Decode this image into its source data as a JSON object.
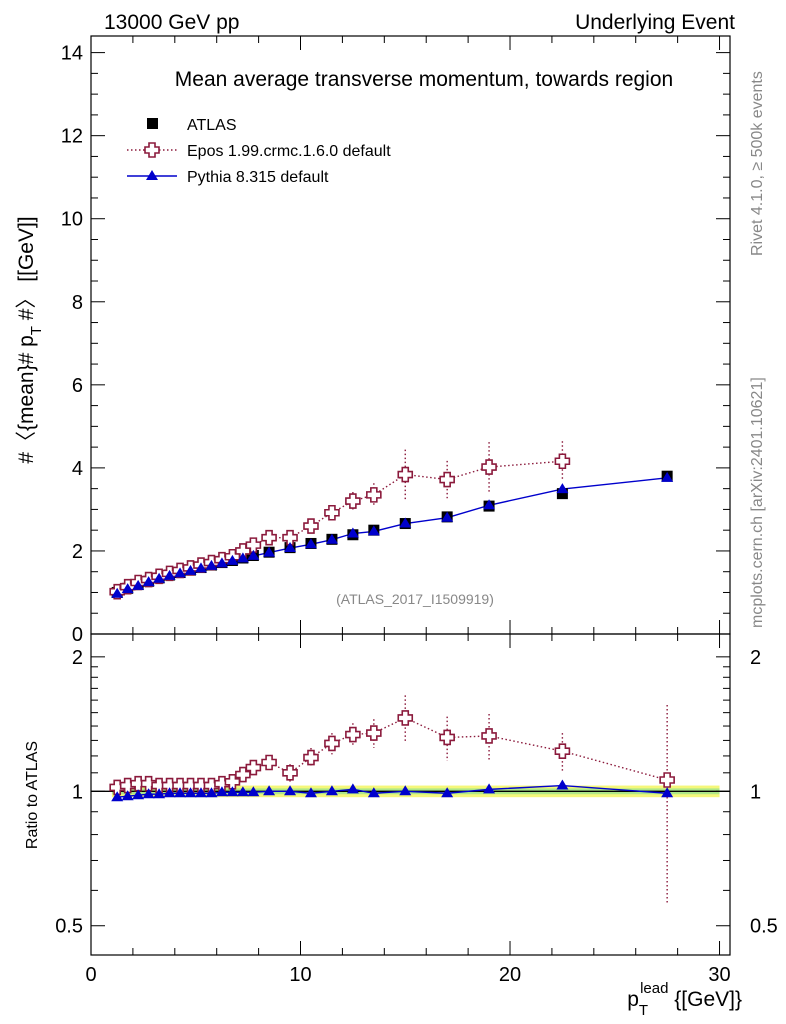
{
  "header": {
    "energy_label": "13000 GeV pp",
    "process_label": "Underlying Event"
  },
  "side_labels": {
    "rivet": "Rivet 4.1.0, ≥ 500k events",
    "mcplots": "mcplots.cern.ch [arXiv:2401.10621]"
  },
  "colors": {
    "data": "#000000",
    "epos": "#8b1a3c",
    "pythia": "#0000cc",
    "band_outer": "#f5f77a",
    "band_inner": "#8ee08e"
  },
  "chart_data": [
    {
      "type": "scatter",
      "title": "Mean average transverse momentum, towards region",
      "watermark": "(ATLAS_2017_I1509919)",
      "xlabel": "p_T^lead [[GeV]]",
      "xlabel_main": "p",
      "xlabel_sub": "T",
      "xlabel_sup": "lead",
      "xlabel_unit": " {[GeV]}",
      "ylabel": "#〈{mean}# p_T #〉 [[GeV]]",
      "ylabel_a": "#〈{mean}# p",
      "ylabel_sub": "T",
      "ylabel_b": " #〉 [[GeV]]",
      "xlim": [
        0,
        30.5
      ],
      "ylim": [
        0,
        14.4
      ],
      "x_ticks": [
        0,
        10,
        20,
        30
      ],
      "y_ticks": [
        0,
        2,
        4,
        6,
        8,
        10,
        12,
        14
      ],
      "x_tick_labels": [
        "0",
        "10",
        "20",
        "30"
      ],
      "y_tick_labels": [
        "0",
        "2",
        "4",
        "6",
        "8",
        "10",
        "12",
        "14"
      ],
      "legend_position": "top-left",
      "series": [
        {
          "name": "ATLAS",
          "marker": "square",
          "x": [
            1.25,
            1.75,
            2.25,
            2.75,
            3.25,
            3.75,
            4.25,
            4.75,
            5.25,
            5.75,
            6.25,
            6.75,
            7.25,
            7.75,
            8.5,
            9.5,
            10.5,
            11.5,
            12.5,
            13.5,
            15,
            17,
            19,
            22.5,
            27.5
          ],
          "y": [
            1.0,
            1.1,
            1.19,
            1.27,
            1.35,
            1.42,
            1.48,
            1.54,
            1.6,
            1.66,
            1.72,
            1.77,
            1.83,
            1.89,
            1.97,
            2.08,
            2.18,
            2.28,
            2.39,
            2.5,
            2.66,
            2.82,
            3.08,
            3.38,
            3.8
          ]
        },
        {
          "name": "Epos 1.99.crmc.1.6.0 default",
          "marker": "open-cross",
          "line": "dotted",
          "x": [
            1.25,
            1.75,
            2.25,
            2.75,
            3.25,
            3.75,
            4.25,
            4.75,
            5.25,
            5.75,
            6.25,
            6.75,
            7.25,
            7.75,
            8.5,
            9.5,
            10.5,
            11.5,
            12.5,
            13.5,
            15,
            17,
            19,
            22.5
          ],
          "y": [
            1.02,
            1.14,
            1.24,
            1.31,
            1.39,
            1.46,
            1.53,
            1.59,
            1.66,
            1.72,
            1.79,
            1.86,
            2.0,
            2.14,
            2.32,
            2.32,
            2.6,
            2.92,
            3.2,
            3.35,
            3.84,
            3.72,
            4.02,
            4.16
          ],
          "yerr": [
            0.02,
            0.02,
            0.02,
            0.02,
            0.02,
            0.02,
            0.02,
            0.02,
            0.03,
            0.03,
            0.04,
            0.05,
            0.06,
            0.08,
            0.1,
            0.12,
            0.15,
            0.18,
            0.22,
            0.28,
            0.6,
            0.45,
            0.6,
            0.48
          ]
        },
        {
          "name": "Pythia 8.315 default",
          "marker": "filled-triangle",
          "line": "solid",
          "x": [
            1.25,
            1.75,
            2.25,
            2.75,
            3.25,
            3.75,
            4.25,
            4.75,
            5.25,
            5.75,
            6.25,
            6.75,
            7.25,
            7.75,
            8.5,
            9.5,
            10.5,
            11.5,
            12.5,
            13.5,
            15,
            17,
            19,
            22.5,
            27.5
          ],
          "y": [
            0.97,
            1.08,
            1.16,
            1.25,
            1.33,
            1.4,
            1.46,
            1.52,
            1.58,
            1.64,
            1.7,
            1.76,
            1.82,
            1.88,
            1.96,
            2.07,
            2.16,
            2.27,
            2.42,
            2.47,
            2.66,
            2.8,
            3.1,
            3.49,
            3.76
          ]
        }
      ]
    },
    {
      "type": "scatter",
      "title": "",
      "ylabel": "Ratio to ATLAS",
      "xlim": [
        0,
        30.5
      ],
      "ylim": [
        0.43,
        2.25
      ],
      "y_scale": "log",
      "y_ticks": [
        0.5,
        1,
        2
      ],
      "y_tick_labels": [
        "0.5",
        "1",
        "2"
      ],
      "x_tick_labels": [
        "0",
        "10",
        "20",
        "30"
      ],
      "reference_band": {
        "x": [
          1.0,
          30.0
        ],
        "inner": [
          0.985,
          1.015
        ],
        "outer": [
          0.97,
          1.03
        ]
      },
      "series": [
        {
          "name": "Epos 1.99.crmc.1.6.0 default",
          "marker": "open-cross",
          "line": "dotted",
          "x": [
            1.25,
            1.75,
            2.25,
            2.75,
            3.25,
            3.75,
            4.25,
            4.75,
            5.25,
            5.75,
            6.25,
            6.75,
            7.25,
            7.75,
            8.5,
            9.5,
            10.5,
            11.5,
            12.5,
            13.5,
            15,
            17,
            19,
            22.5,
            27.5
          ],
          "y": [
            1.02,
            1.03,
            1.04,
            1.04,
            1.03,
            1.03,
            1.03,
            1.03,
            1.03,
            1.03,
            1.04,
            1.05,
            1.09,
            1.13,
            1.16,
            1.1,
            1.19,
            1.28,
            1.34,
            1.35,
            1.46,
            1.32,
            1.33,
            1.23,
            1.06
          ],
          "yerr": [
            0.01,
            0.01,
            0.01,
            0.01,
            0.01,
            0.01,
            0.01,
            0.01,
            0.01,
            0.02,
            0.02,
            0.02,
            0.03,
            0.04,
            0.04,
            0.05,
            0.06,
            0.07,
            0.08,
            0.1,
            0.18,
            0.15,
            0.16,
            0.12,
            0.5
          ]
        },
        {
          "name": "Pythia 8.315 default",
          "marker": "filled-triangle",
          "line": "solid",
          "x": [
            1.25,
            1.75,
            2.25,
            2.75,
            3.25,
            3.75,
            4.25,
            4.75,
            5.25,
            5.75,
            6.25,
            6.75,
            7.25,
            7.75,
            8.5,
            9.5,
            10.5,
            11.5,
            12.5,
            13.5,
            15,
            17,
            19,
            22.5,
            27.5
          ],
          "y": [
            0.97,
            0.975,
            0.98,
            0.985,
            0.985,
            0.99,
            0.99,
            0.99,
            0.99,
            0.99,
            0.995,
            0.995,
            0.995,
            0.995,
            1.0,
            1.0,
            0.99,
            1.0,
            1.01,
            0.99,
            1.0,
            0.99,
            1.01,
            1.03,
            0.99
          ]
        }
      ]
    }
  ]
}
